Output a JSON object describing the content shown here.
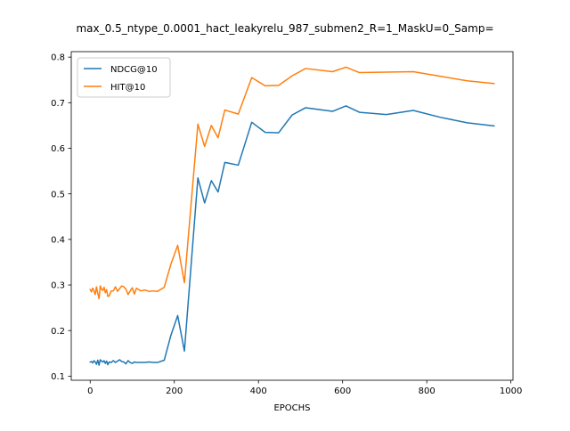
{
  "chart_data": {
    "type": "line",
    "title": "max_0.5_ntype_0.0001_hact_leakyrelu_987_submen2_R=1_MaskU=0_Samp=",
    "xlabel": "EPOCHS",
    "ylabel": "",
    "xlim": [
      -45,
      1005
    ],
    "ylim": [
      0.091,
      0.812
    ],
    "xticks": [
      0,
      200,
      400,
      600,
      800,
      1000
    ],
    "xtick_labels": [
      "0",
      "200",
      "400",
      "600",
      "800",
      "1000"
    ],
    "yticks": [
      0.1,
      0.2,
      0.3,
      0.4,
      0.5,
      0.6,
      0.7,
      0.8
    ],
    "ytick_labels": [
      "0.1",
      "0.2",
      "0.3",
      "0.4",
      "0.5",
      "0.6",
      "0.7",
      "0.8"
    ],
    "grid": false,
    "legend_position": "upper-left",
    "series": [
      {
        "name": "NDCG@10",
        "color": "#1f77b4",
        "x": [
          0,
          3,
          6,
          9,
          12,
          15,
          18,
          21,
          24,
          27,
          30,
          33,
          36,
          39,
          42,
          45,
          50,
          55,
          60,
          65,
          70,
          75,
          80,
          85,
          90,
          95,
          100,
          105,
          110,
          115,
          120,
          130,
          140,
          150,
          160,
          176,
          192,
          208,
          224,
          256,
          272,
          288,
          304,
          320,
          352,
          384,
          416,
          448,
          480,
          512,
          576,
          608,
          640,
          704,
          768,
          832,
          896,
          960
        ],
        "y": [
          0.131,
          0.132,
          0.129,
          0.134,
          0.131,
          0.126,
          0.135,
          0.124,
          0.136,
          0.133,
          0.131,
          0.134,
          0.128,
          0.133,
          0.125,
          0.131,
          0.13,
          0.134,
          0.13,
          0.133,
          0.136,
          0.132,
          0.131,
          0.127,
          0.134,
          0.13,
          0.128,
          0.131,
          0.13,
          0.13,
          0.13,
          0.13,
          0.131,
          0.13,
          0.13,
          0.135,
          0.19,
          0.233,
          0.155,
          0.535,
          0.48,
          0.529,
          0.504,
          0.569,
          0.563,
          0.657,
          0.635,
          0.634,
          0.673,
          0.689,
          0.681,
          0.693,
          0.679,
          0.674,
          0.683,
          0.668,
          0.656,
          0.649
        ]
      },
      {
        "name": "HIT@10",
        "color": "#ff7f0e",
        "x": [
          0,
          3,
          6,
          9,
          12,
          15,
          18,
          21,
          24,
          27,
          30,
          33,
          36,
          39,
          42,
          45,
          50,
          55,
          60,
          65,
          70,
          75,
          80,
          85,
          90,
          95,
          100,
          105,
          110,
          115,
          120,
          130,
          140,
          150,
          160,
          176,
          192,
          208,
          224,
          256,
          272,
          288,
          304,
          320,
          352,
          384,
          416,
          448,
          480,
          512,
          576,
          608,
          640,
          704,
          768,
          832,
          896,
          960
        ],
        "y": [
          0.29,
          0.285,
          0.293,
          0.287,
          0.279,
          0.296,
          0.282,
          0.27,
          0.298,
          0.291,
          0.288,
          0.295,
          0.283,
          0.29,
          0.275,
          0.276,
          0.287,
          0.287,
          0.296,
          0.286,
          0.292,
          0.298,
          0.296,
          0.291,
          0.279,
          0.287,
          0.294,
          0.28,
          0.293,
          0.29,
          0.287,
          0.289,
          0.286,
          0.287,
          0.286,
          0.295,
          0.346,
          0.387,
          0.305,
          0.653,
          0.604,
          0.65,
          0.623,
          0.684,
          0.675,
          0.755,
          0.737,
          0.738,
          0.759,
          0.775,
          0.768,
          0.778,
          0.766,
          0.767,
          0.768,
          0.758,
          0.748,
          0.742
        ]
      }
    ]
  }
}
